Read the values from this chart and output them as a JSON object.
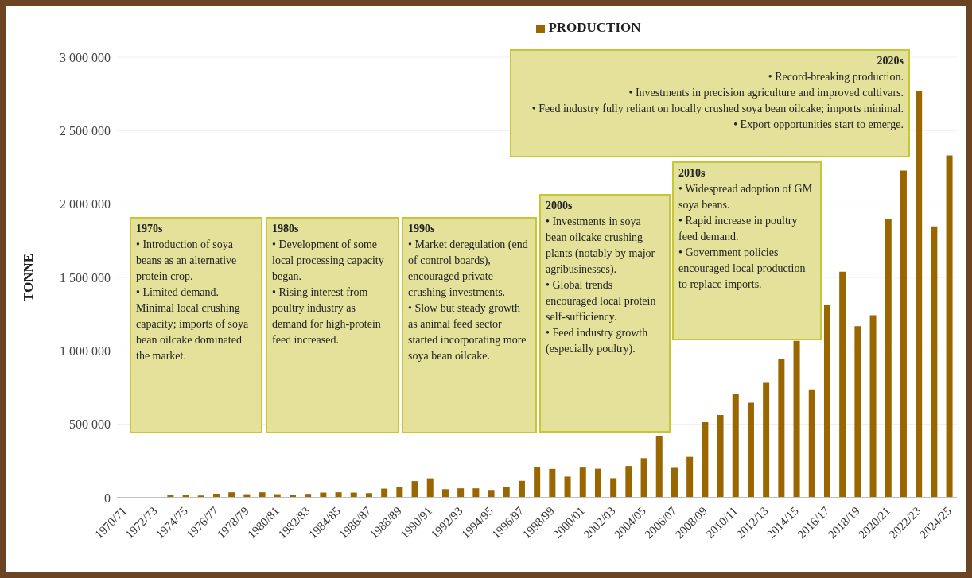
{
  "chart_data": {
    "type": "bar",
    "ylabel": "TONNE",
    "legend": "top",
    "grid": "y",
    "categories": [
      "1970/71",
      null,
      "1972/73",
      null,
      "1974/75",
      null,
      "1976/77",
      null,
      "1978/79",
      null,
      "1980/81",
      null,
      "1982/83",
      null,
      "1984/85",
      null,
      "1986/87",
      null,
      "1988/89",
      null,
      "1990/91",
      null,
      "1992/93",
      null,
      "1994/95",
      null,
      "1996/97",
      null,
      "1998/99",
      null,
      "2000/01",
      null,
      "2002/03",
      null,
      "2004/05",
      null,
      "2006/07",
      null,
      "2008/09",
      null,
      "2010/11",
      null,
      "2012/13",
      null,
      "2014/15",
      null,
      "2016/17",
      null,
      "2018/19",
      null,
      "2020/21",
      null,
      "2022/23",
      null,
      "2024/25"
    ],
    "series": [
      {
        "name": "PRODUCTION",
        "color": "#996600",
        "values": [
          2000,
          1000,
          3000,
          18000,
          18000,
          15000,
          27000,
          37000,
          24000,
          37000,
          24000,
          18000,
          26000,
          35000,
          37000,
          35000,
          31000,
          62000,
          75000,
          113000,
          132000,
          58000,
          64000,
          64000,
          53000,
          75000,
          115000,
          210000,
          196000,
          144000,
          205000,
          197000,
          133000,
          216000,
          269000,
          420000,
          203000,
          278000,
          514000,
          563000,
          708000,
          647000,
          783000,
          946000,
          1068000,
          738000,
          1313000,
          1539000,
          1168000,
          1243000,
          1897000,
          2229000,
          2771000,
          1848000,
          2331000
        ]
      }
    ],
    "ylim": [
      0,
      3000000
    ],
    "yticks": [
      {
        "value": 0,
        "label": "0"
      },
      {
        "value": 500000,
        "label": "500 000"
      },
      {
        "value": 1000000,
        "label": "1 000 000"
      },
      {
        "value": 1500000,
        "label": "1 500 000"
      },
      {
        "value": 2000000,
        "label": "2 000 000"
      },
      {
        "value": 2500000,
        "label": "2 500 000"
      },
      {
        "value": 3000000,
        "label": "3 000 000"
      }
    ],
    "annotations": [
      "1970s\n• Introduction of soya beans as an alternative protein crop.\n• Limited demand. Minimal local crushing capacity; imports of soya bean oilcake dominated the market.",
      "1980s\n• Development of some local processing capacity began.\n• Rising interest from poultry industry as demand for high-protein feed increased.",
      "1990s\n• Market deregulation (end of control boards), encouraged private crushing investments.\n• Slow but steady growth as animal feed sector started incorporating more soya bean oilcake.",
      "2000s\n• Investments in soya bean oilcake crushing plants (notably by major agribusinesses).\n• Global trends encouraged local protein self-sufficiency.\n• Feed industry growth (especially poultry).",
      "2010s\n• Widespread adoption of GM soya beans.\n• Rapid increase in poultry feed demand.\n• Government policies encouraged local production to replace imports.",
      "2020s\n• Record-breaking production.\n• Investments in precision agriculture and improved cultivars.\n• Feed industry fully reliant on locally crushed soya bean oilcake; imports minimal.\n• Export opportunities start to emerge."
    ]
  }
}
